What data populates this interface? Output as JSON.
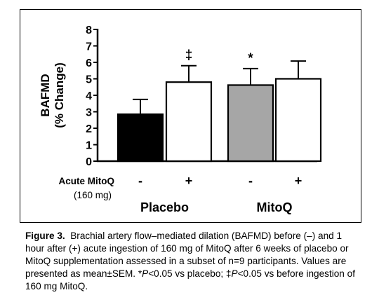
{
  "chart_data": {
    "type": "bar",
    "ylabel_line1": "BAFMD",
    "ylabel_line2": "(% Change)",
    "ylim": [
      0,
      8
    ],
    "yticks": [
      "0",
      "1",
      "2",
      "3",
      "4",
      "5",
      "6",
      "7",
      "8"
    ],
    "row_label_line1": "Acute MitoQ",
    "row_label_line2": "(160 mg)",
    "groups": [
      "Placebo",
      "MitoQ"
    ],
    "bars": [
      {
        "group": "Placebo",
        "mitoq": "-",
        "value": 2.85,
        "sem": 0.9,
        "fill": "#000000",
        "annotation": ""
      },
      {
        "group": "Placebo",
        "mitoq": "+",
        "value": 4.8,
        "sem": 1.0,
        "fill": "#ffffff",
        "annotation": "‡"
      },
      {
        "group": "MitoQ",
        "mitoq": "-",
        "value": 4.62,
        "sem": 1.0,
        "fill": "#a6a6a6",
        "annotation": "*"
      },
      {
        "group": "MitoQ",
        "mitoq": "+",
        "value": 5.0,
        "sem": 1.08,
        "fill": "#ffffff",
        "annotation": ""
      }
    ]
  },
  "caption": {
    "label": "Figure 3.",
    "p1": "Brachial artery flow–mediated dilation (BAFMD) before (–) and 1 hour after (+) acute ingestion of 160 mg of MitoQ after 6 weeks of placebo or MitoQ supplementation assessed in a subset of n=9 participants. Values are presented as mean±SEM. *",
    "p_italic_1": "P",
    "p2": "<0.05 vs placebo; ‡",
    "p_italic_2": "P",
    "p3": "<0.05 vs before ingestion of 160 mg MitoQ."
  }
}
